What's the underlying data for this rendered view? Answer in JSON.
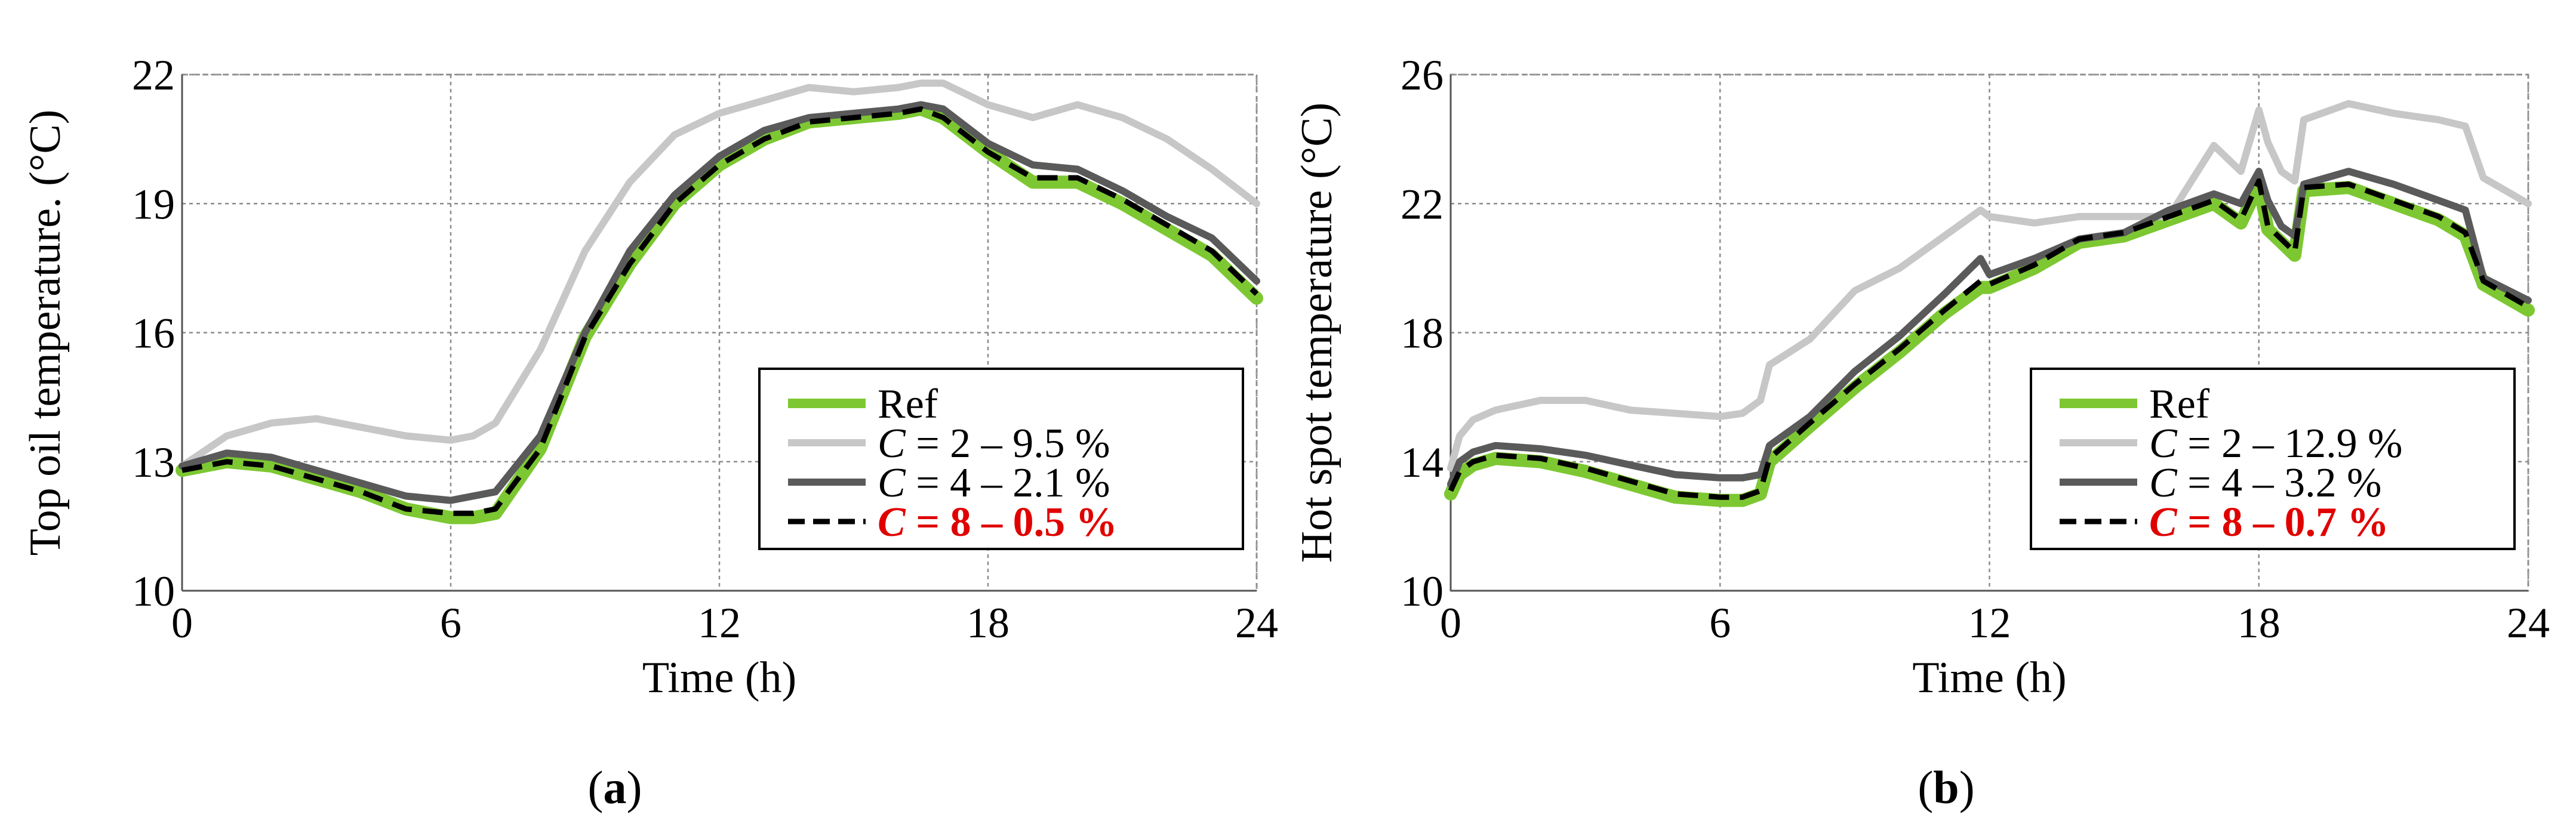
{
  "chart_data": [
    {
      "type": "line",
      "panel": "a",
      "xlabel": "Time (h)",
      "ylabel": "Top oil temperature.  (°C)",
      "xlim": [
        0,
        24
      ],
      "ylim": [
        10,
        22
      ],
      "xticks": [
        0,
        6,
        12,
        18,
        24
      ],
      "yticks": [
        10,
        13,
        16,
        19,
        22
      ],
      "grid": true,
      "legend_position": "bottom-right",
      "x": [
        0,
        1,
        2,
        3,
        4,
        5,
        6,
        6.5,
        7,
        8,
        9,
        10,
        11,
        12,
        13,
        14,
        15,
        16,
        16.5,
        17,
        18,
        19,
        20,
        21,
        22,
        23,
        24
      ],
      "series": [
        {
          "name": "Ref",
          "label_prefix": "",
          "label_suffix": "",
          "color": "#7dc832",
          "width": 22,
          "dash": "",
          "values": [
            12.8,
            13.0,
            12.9,
            12.6,
            12.3,
            11.9,
            11.7,
            11.7,
            11.8,
            13.3,
            15.9,
            17.6,
            19.0,
            19.9,
            20.5,
            20.9,
            21.0,
            21.1,
            21.2,
            21.0,
            20.2,
            19.5,
            19.5,
            19.0,
            18.4,
            17.8,
            16.8
          ]
        },
        {
          "name": "C = 2 – 9.5 %",
          "label_prefix": "C",
          "label_suffix": " = 2 – 9.5 %",
          "color": "#c7c7c7",
          "width": 12,
          "dash": "",
          "values": [
            12.9,
            13.6,
            13.9,
            14.0,
            13.8,
            13.6,
            13.5,
            13.6,
            13.9,
            15.6,
            17.9,
            19.5,
            20.6,
            21.1,
            21.4,
            21.7,
            21.6,
            21.7,
            21.8,
            21.8,
            21.3,
            21.0,
            21.3,
            21.0,
            20.5,
            19.8,
            19.0
          ]
        },
        {
          "name": "C = 4 – 2.1 %",
          "label_prefix": "C",
          "label_suffix": " = 4 – 2.1 %",
          "color": "#5a5a5a",
          "width": 12,
          "dash": "",
          "values": [
            12.9,
            13.2,
            13.1,
            12.8,
            12.5,
            12.2,
            12.1,
            12.2,
            12.3,
            13.6,
            16.0,
            17.9,
            19.2,
            20.1,
            20.7,
            21.0,
            21.1,
            21.2,
            21.3,
            21.2,
            20.4,
            19.9,
            19.8,
            19.3,
            18.7,
            18.2,
            17.2
          ]
        },
        {
          "name": "C = 8 – 0.5 %",
          "label_prefix": "C",
          "label_suffix": " = 8 – 0.5 %",
          "color": "#000000",
          "width": 9,
          "dash": "34 18",
          "highlight": true,
          "values": [
            12.8,
            13.0,
            12.9,
            12.6,
            12.3,
            11.9,
            11.8,
            11.8,
            11.9,
            13.3,
            15.9,
            17.6,
            19.0,
            19.9,
            20.5,
            20.9,
            21.0,
            21.1,
            21.2,
            21.0,
            20.2,
            19.6,
            19.6,
            19.1,
            18.5,
            17.9,
            16.9
          ]
        }
      ],
      "subfigure_label": "a"
    },
    {
      "type": "line",
      "panel": "b",
      "xlabel": "Time (h)",
      "ylabel": "Hot spot temperature (°C)",
      "xlim": [
        0,
        24
      ],
      "ylim": [
        10,
        26
      ],
      "xticks": [
        0,
        6,
        12,
        18,
        24
      ],
      "yticks": [
        10,
        14,
        18,
        22,
        26
      ],
      "grid": true,
      "legend_position": "bottom-right",
      "x": [
        0,
        0.2,
        0.5,
        1,
        2,
        3,
        4,
        5,
        6,
        6.5,
        6.9,
        7.1,
        8,
        9,
        10,
        11,
        11.8,
        12,
        13,
        14,
        15,
        16,
        17,
        17.6,
        18,
        18.2,
        18.5,
        18.8,
        19,
        20,
        21,
        22,
        22.6,
        23,
        24
      ],
      "series": [
        {
          "name": "Ref",
          "label_prefix": "",
          "label_suffix": "",
          "color": "#7dc832",
          "width": 22,
          "dash": "",
          "values": [
            13.0,
            13.6,
            13.9,
            14.1,
            14.0,
            13.7,
            13.3,
            12.9,
            12.8,
            12.8,
            13.0,
            14.0,
            15.1,
            16.3,
            17.4,
            18.6,
            19.4,
            19.4,
            20.0,
            20.8,
            21.0,
            21.5,
            22.0,
            21.4,
            22.6,
            21.2,
            20.8,
            20.4,
            22.4,
            22.5,
            22.0,
            21.5,
            21.0,
            19.5,
            18.7
          ]
        },
        {
          "name": "C = 2 – 12.9 %",
          "label_prefix": "C",
          "label_suffix": " = 2 – 12.9 %",
          "color": "#c7c7c7",
          "width": 12,
          "dash": "",
          "values": [
            13.8,
            14.8,
            15.3,
            15.6,
            15.9,
            15.9,
            15.6,
            15.5,
            15.4,
            15.5,
            15.9,
            17.0,
            17.8,
            19.3,
            20.0,
            21.0,
            21.8,
            21.6,
            21.4,
            21.6,
            21.6,
            21.6,
            23.8,
            23.0,
            24.9,
            23.9,
            23.0,
            22.7,
            24.6,
            25.1,
            24.8,
            24.6,
            24.4,
            22.8,
            22.0
          ]
        },
        {
          "name": "C = 4 – 3.2 %",
          "label_prefix": "C",
          "label_suffix": " = 4 – 3.2 %",
          "color": "#5a5a5a",
          "width": 12,
          "dash": "",
          "values": [
            13.3,
            14.0,
            14.3,
            14.5,
            14.4,
            14.2,
            13.9,
            13.6,
            13.5,
            13.5,
            13.6,
            14.5,
            15.4,
            16.8,
            17.9,
            19.2,
            20.3,
            19.8,
            20.3,
            20.9,
            21.1,
            21.8,
            22.3,
            22.0,
            23.0,
            22.1,
            21.3,
            21.0,
            22.6,
            23.0,
            22.6,
            22.1,
            21.8,
            19.7,
            19.0
          ]
        },
        {
          "name": "C = 8 – 0.7 %",
          "label_prefix": "C",
          "label_suffix": " = 8 – 0.7 %",
          "color": "#000000",
          "width": 9,
          "dash": "34 18",
          "highlight": true,
          "values": [
            13.1,
            13.7,
            14.0,
            14.2,
            14.1,
            13.8,
            13.4,
            13.0,
            12.9,
            12.9,
            13.1,
            14.1,
            15.2,
            16.4,
            17.5,
            18.7,
            19.6,
            19.5,
            20.1,
            20.9,
            21.1,
            21.6,
            22.1,
            21.5,
            22.7,
            21.3,
            20.9,
            20.5,
            22.5,
            22.6,
            22.1,
            21.6,
            21.1,
            19.6,
            18.8
          ]
        }
      ],
      "subfigure_label": "b"
    }
  ]
}
